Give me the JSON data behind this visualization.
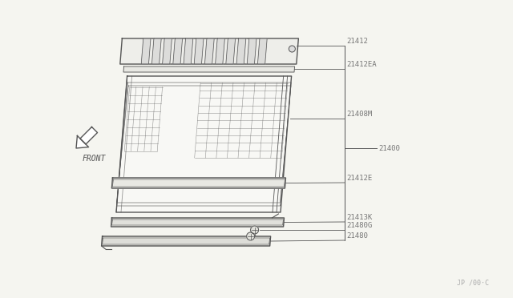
{
  "background_color": "#f5f5f0",
  "line_color": "#555555",
  "text_color": "#777777",
  "watermark": "JP /00·C",
  "front_label": "FRONT",
  "labels": [
    {
      "text": "21412",
      "vy": 0.845
    },
    {
      "text": "21412EA",
      "vy": 0.8
    },
    {
      "text": "21408M",
      "vy": 0.62
    },
    {
      "text": "21400",
      "vy": 0.5
    },
    {
      "text": "21412E",
      "vy": 0.415
    },
    {
      "text": "21413K",
      "vy": 0.33
    },
    {
      "text": "21480G",
      "vy": 0.28
    },
    {
      "text": "21480",
      "vy": 0.23
    }
  ]
}
